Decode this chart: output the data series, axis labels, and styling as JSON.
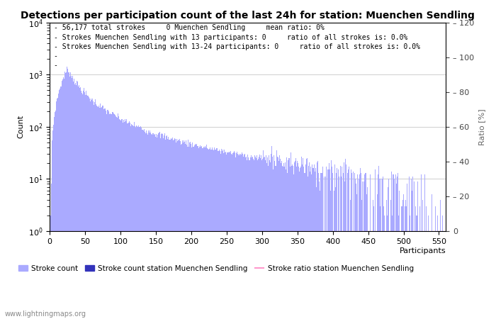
{
  "title": "Detections per participation count of the last 24h for station: Muenchen Sendling",
  "xlabel": "Participants",
  "ylabel_left": "Count",
  "ylabel_right": "Ratio [%]",
  "annotation_lines": [
    "56,177 total strokes     0 Muenchen Sendling     mean ratio: 0%",
    "Strokes Muenchen Sendling with 13 participants: 0     ratio of all strokes is: 0.0%",
    "Strokes Muenchen Sendling with 13-24 participants: 0     ratio of all strokes is: 0.0%"
  ],
  "xmin": 0,
  "xmax": 560,
  "ymin": 1.0,
  "ymax": 10000.0,
  "right_ymin": 0,
  "right_ymax": 120,
  "bar_color_main": "#aaaaff",
  "bar_color_station": "#3333bb",
  "ratio_line_color": "#ff99cc",
  "watermark": "www.lightningmaps.org",
  "legend_labels": [
    "Stroke count",
    "Stroke count station Muenchen Sendling",
    "Stroke ratio station Muenchen Sendling"
  ],
  "title_fontsize": 10,
  "annotation_fontsize": 7,
  "tick_fontsize": 8,
  "label_fontsize": 8,
  "watermark_fontsize": 7,
  "figsize": [
    7.0,
    4.5
  ],
  "dpi": 100
}
